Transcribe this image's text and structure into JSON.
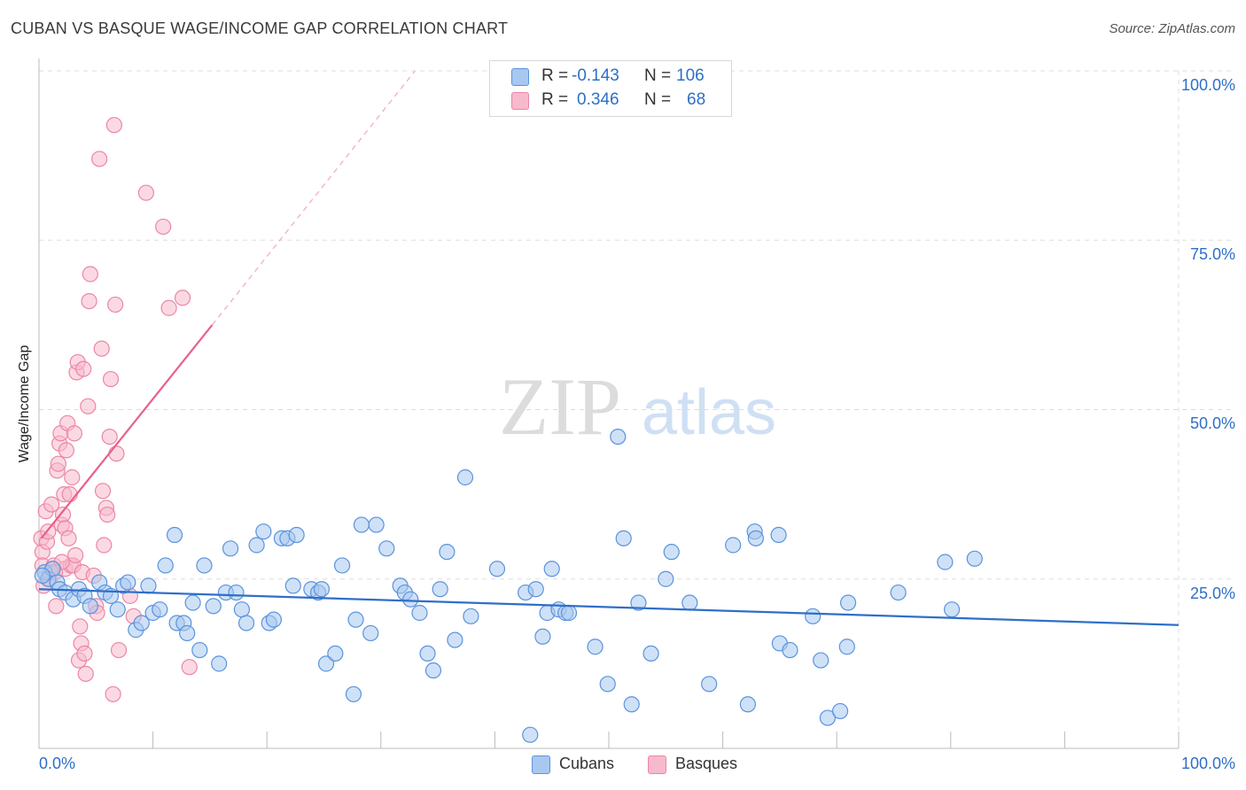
{
  "title": "CUBAN VS BASQUE WAGE/INCOME GAP CORRELATION CHART",
  "source": "Source: ZipAtlas.com",
  "watermark": {
    "zip": "ZIP",
    "atlas": "atlas"
  },
  "legend_top": [
    {
      "r_label": "R =",
      "r_value": "-0.143",
      "n_label": "N =",
      "n_value": "106"
    },
    {
      "r_label": "R =",
      "r_value": "0.346",
      "n_label": "N =",
      "n_value": "68"
    }
  ],
  "legend_bottom": [
    {
      "label": "Cubans"
    },
    {
      "label": "Basques"
    }
  ],
  "colors": {
    "cubans_fill": "#a8c8f0",
    "cubans_stroke": "#5b93dc",
    "cubans_line": "#2e6fc8",
    "basques_fill": "#f7b9cc",
    "basques_stroke": "#ec86a6",
    "basques_line": "#e8608a",
    "axis_text": "#2e6fc8",
    "grid": "#dddddd"
  },
  "chart_data": {
    "type": "scatter",
    "title": "CUBAN VS BASQUE WAGE/INCOME GAP CORRELATION CHART",
    "xlabel": "",
    "ylabel": "Wage/Income Gap",
    "x_tick_labels": [
      "0.0%",
      "100.0%"
    ],
    "y_tick_labels": [
      "25.0%",
      "50.0%",
      "75.0%",
      "100.0%"
    ],
    "xlim": [
      0,
      100
    ],
    "ylim": [
      0,
      100
    ],
    "grid": true,
    "legend_position": "top-center",
    "series": [
      {
        "name": "Cubans",
        "r": -0.143,
        "n": 106,
        "trend": {
          "x": [
            0,
            100
          ],
          "y": [
            23.5,
            18.2
          ]
        },
        "points": [
          [
            0.5,
            26
          ],
          [
            0.8,
            25
          ],
          [
            1.2,
            26.5
          ],
          [
            1.6,
            24.5
          ],
          [
            1.8,
            23.5
          ],
          [
            2.3,
            23
          ],
          [
            3.0,
            22
          ],
          [
            3.5,
            23.5
          ],
          [
            4.0,
            22.5
          ],
          [
            4.5,
            21
          ],
          [
            5.3,
            24.5
          ],
          [
            5.8,
            23
          ],
          [
            6.3,
            22.5
          ],
          [
            6.9,
            20.5
          ],
          [
            7.4,
            24
          ],
          [
            7.8,
            24.5
          ],
          [
            8.5,
            17.5
          ],
          [
            9.0,
            18.5
          ],
          [
            9.6,
            24
          ],
          [
            10.0,
            20
          ],
          [
            10.6,
            20.5
          ],
          [
            11.1,
            27
          ],
          [
            11.9,
            31.5
          ],
          [
            12.1,
            18.5
          ],
          [
            12.7,
            18.5
          ],
          [
            13.0,
            17
          ],
          [
            13.5,
            21.5
          ],
          [
            14.1,
            14.5
          ],
          [
            14.5,
            27
          ],
          [
            15.3,
            21
          ],
          [
            15.8,
            12.5
          ],
          [
            16.4,
            23
          ],
          [
            16.8,
            29.5
          ],
          [
            17.3,
            23
          ],
          [
            17.8,
            20.5
          ],
          [
            18.2,
            18.5
          ],
          [
            19.1,
            30
          ],
          [
            19.7,
            32
          ],
          [
            20.2,
            18.5
          ],
          [
            20.6,
            19
          ],
          [
            21.3,
            31
          ],
          [
            21.8,
            31
          ],
          [
            22.3,
            24
          ],
          [
            22.6,
            31.5
          ],
          [
            23.9,
            23.5
          ],
          [
            24.5,
            23
          ],
          [
            24.8,
            23.5
          ],
          [
            25.2,
            12.5
          ],
          [
            26.0,
            14
          ],
          [
            26.6,
            27
          ],
          [
            27.6,
            8
          ],
          [
            27.8,
            19
          ],
          [
            28.3,
            33
          ],
          [
            29.1,
            17
          ],
          [
            29.6,
            33
          ],
          [
            30.5,
            29.5
          ],
          [
            31.7,
            24
          ],
          [
            32.1,
            23
          ],
          [
            32.6,
            22
          ],
          [
            33.4,
            20
          ],
          [
            34.1,
            14
          ],
          [
            34.6,
            11.5
          ],
          [
            35.2,
            23.5
          ],
          [
            35.8,
            29
          ],
          [
            36.5,
            16
          ],
          [
            37.4,
            40
          ],
          [
            37.9,
            19.5
          ],
          [
            40.2,
            26.5
          ],
          [
            42.7,
            23
          ],
          [
            43.1,
            2
          ],
          [
            43.6,
            23.5
          ],
          [
            44.2,
            16.5
          ],
          [
            44.6,
            20
          ],
          [
            45.0,
            26.5
          ],
          [
            45.6,
            20.5
          ],
          [
            46.2,
            20
          ],
          [
            46.5,
            20
          ],
          [
            48.8,
            15
          ],
          [
            49.9,
            9.5
          ],
          [
            50.8,
            46
          ],
          [
            51.3,
            31
          ],
          [
            52.0,
            6.5
          ],
          [
            52.6,
            21.5
          ],
          [
            53.7,
            14
          ],
          [
            55.0,
            25
          ],
          [
            55.5,
            29
          ],
          [
            57.1,
            21.5
          ],
          [
            58.8,
            9.5
          ],
          [
            60.9,
            30
          ],
          [
            62.2,
            6.5
          ],
          [
            62.8,
            32
          ],
          [
            62.9,
            31
          ],
          [
            64.9,
            31.5
          ],
          [
            65.0,
            15.5
          ],
          [
            65.9,
            14.5
          ],
          [
            67.9,
            19.5
          ],
          [
            68.6,
            13
          ],
          [
            69.2,
            4.5
          ],
          [
            70.3,
            5.5
          ],
          [
            70.9,
            15
          ],
          [
            71.0,
            21.5
          ],
          [
            75.4,
            23
          ],
          [
            79.5,
            27.5
          ],
          [
            80.1,
            20.5
          ],
          [
            82.1,
            28
          ],
          [
            0.3,
            25.5
          ]
        ]
      },
      {
        "name": "Basques",
        "r": 0.346,
        "n": 68,
        "trend": {
          "x": [
            0.2,
            15.2
          ],
          "y": [
            31,
            62.5
          ]
        },
        "trend_extension": {
          "x": [
            15.2,
            33
          ],
          "y": [
            62.5,
            100
          ]
        },
        "points": [
          [
            0.2,
            31
          ],
          [
            0.3,
            29
          ],
          [
            0.3,
            27
          ],
          [
            0.4,
            24
          ],
          [
            0.6,
            35
          ],
          [
            0.7,
            30.5
          ],
          [
            0.8,
            32
          ],
          [
            0.9,
            25
          ],
          [
            1.0,
            26
          ],
          [
            1.1,
            36
          ],
          [
            1.2,
            26.5
          ],
          [
            1.3,
            27
          ],
          [
            1.5,
            21
          ],
          [
            1.6,
            41
          ],
          [
            1.7,
            42
          ],
          [
            1.8,
            45
          ],
          [
            1.9,
            46.5
          ],
          [
            2.0,
            33
          ],
          [
            2.1,
            34.5
          ],
          [
            2.2,
            37.5
          ],
          [
            2.3,
            32.5
          ],
          [
            2.3,
            26.5
          ],
          [
            2.4,
            44
          ],
          [
            2.5,
            48
          ],
          [
            2.6,
            31
          ],
          [
            2.7,
            37.5
          ],
          [
            2.8,
            27
          ],
          [
            2.9,
            40
          ],
          [
            3.0,
            27
          ],
          [
            3.1,
            46.5
          ],
          [
            3.2,
            28.5
          ],
          [
            3.3,
            55.5
          ],
          [
            3.4,
            57
          ],
          [
            3.5,
            13
          ],
          [
            3.6,
            18
          ],
          [
            3.7,
            15.5
          ],
          [
            3.8,
            26
          ],
          [
            3.9,
            56
          ],
          [
            4.0,
            14
          ],
          [
            4.1,
            11
          ],
          [
            4.3,
            50.5
          ],
          [
            4.4,
            66
          ],
          [
            4.5,
            70
          ],
          [
            4.8,
            25.5
          ],
          [
            5.0,
            21
          ],
          [
            5.1,
            20
          ],
          [
            5.3,
            87
          ],
          [
            5.5,
            59
          ],
          [
            5.6,
            38
          ],
          [
            5.7,
            30
          ],
          [
            5.9,
            35.5
          ],
          [
            6.0,
            34.5
          ],
          [
            6.2,
            46
          ],
          [
            6.3,
            54.5
          ],
          [
            6.5,
            8
          ],
          [
            6.6,
            92
          ],
          [
            6.7,
            65.5
          ],
          [
            6.8,
            43.5
          ],
          [
            7.0,
            14.5
          ],
          [
            8.0,
            22.5
          ],
          [
            8.3,
            19.5
          ],
          [
            9.4,
            82
          ],
          [
            10.9,
            77
          ],
          [
            11.4,
            65
          ],
          [
            12.6,
            66.5
          ],
          [
            13.2,
            12
          ],
          [
            2.0,
            27.5
          ],
          [
            1.4,
            26
          ]
        ]
      }
    ]
  }
}
